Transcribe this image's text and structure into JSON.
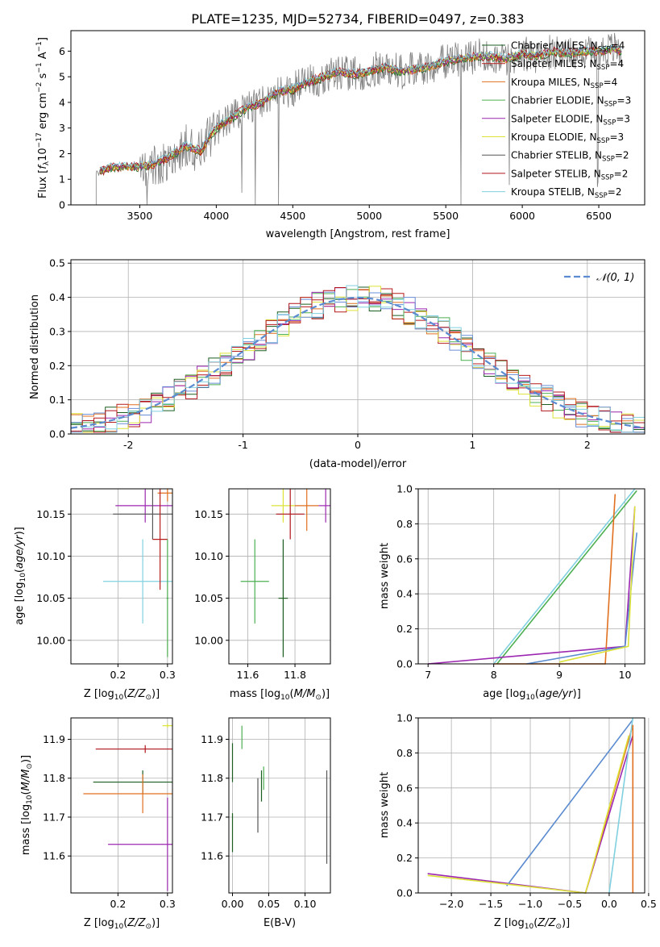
{
  "figure_title": "PLATE=1235, MJD=52734, FIBERID=0497, z=0.383",
  "colors": {
    "Chabrier MILES": "#1b5e20",
    "Salpeter MILES": "#b71c1c",
    "Kroupa MILES": "#e07020",
    "Chabrier ELODIE": "#4caf50",
    "Salpeter ELODIE": "#9c27b0",
    "Kroupa ELODIE": "#dde33a",
    "Chabrier STELIB": "#555555",
    "Salpeter STELIB": "#b0141c",
    "Kroupa STELIB": "#80d0e0",
    "data": "#808080",
    "normal": "#5b8bd0"
  },
  "chart_data": [
    {
      "id": "spectrum",
      "type": "line",
      "title": "PLATE=1235, MJD=52734, FIBERID=0497, z=0.383",
      "xlabel": "wavelength [Angstrom, rest frame]",
      "ylabel": "Flux [f_λ10^-17 erg cm^-2 s^-1 A^-1]",
      "xlim": [
        3050,
        6800
      ],
      "ylim": [
        0,
        6.8
      ],
      "xticks": [
        3500,
        4000,
        4500,
        5000,
        5500,
        6000,
        6500
      ],
      "yticks": [
        0,
        1,
        2,
        3,
        4,
        5,
        6
      ],
      "legend_position": "top-right",
      "series": [
        {
          "name": "Chabrier MILES, N_SSP=4",
          "label_main": "Chabrier MILES, N",
          "label_sub": "SSP",
          "label_tail": "=4"
        },
        {
          "name": "Salpeter MILES, N_SSP=4",
          "label_main": "Salpeter MILES, N",
          "label_sub": "SSP",
          "label_tail": "=4"
        },
        {
          "name": "Kroupa MILES, N_SSP=4",
          "label_main": "Kroupa MILES, N",
          "label_sub": "SSP",
          "label_tail": "=4"
        },
        {
          "name": "Chabrier ELODIE, N_SSP=3",
          "label_main": "Chabrier ELODIE, N",
          "label_sub": "SSP",
          "label_tail": "=3"
        },
        {
          "name": "Salpeter ELODIE, N_SSP=3",
          "label_main": "Salpeter ELODIE, N",
          "label_sub": "SSP",
          "label_tail": "=3"
        },
        {
          "name": "Kroupa ELODIE, N_SSP=3",
          "label_main": "Kroupa ELODIE, N",
          "label_sub": "SSP",
          "label_tail": "=3"
        },
        {
          "name": "Chabrier STELIB, N_SSP=2",
          "label_main": "Chabrier STELIB, N",
          "label_sub": "SSP",
          "label_tail": "=2"
        },
        {
          "name": "Salpeter STELIB, N_SSP=2",
          "label_main": "Salpeter STELIB, N",
          "label_sub": "SSP",
          "label_tail": "=2"
        },
        {
          "name": "Kroupa STELIB, N_SSP=2",
          "label_main": "Kroupa STELIB, N",
          "label_sub": "SSP",
          "label_tail": "=2"
        }
      ],
      "model_curve": {
        "x": [
          3210,
          3240,
          3300,
          3400,
          3500,
          3600,
          3700,
          3800,
          3900,
          3950,
          4000,
          4100,
          4200,
          4300,
          4400,
          4500,
          4600,
          4700,
          4800,
          4900,
          5000,
          5100,
          5200,
          5300,
          5400,
          5500,
          5600,
          5700,
          5800,
          5900,
          6000,
          6100,
          6200,
          6300,
          6400,
          6500,
          6600,
          6650
        ],
        "y": [
          1.2,
          1.3,
          1.45,
          1.5,
          1.5,
          1.6,
          1.9,
          2.3,
          2.1,
          2.6,
          3.0,
          3.4,
          3.8,
          4.0,
          4.4,
          4.5,
          4.8,
          5.0,
          5.2,
          5.1,
          5.2,
          5.4,
          5.2,
          5.3,
          5.4,
          5.6,
          5.7,
          5.8,
          5.8,
          5.7,
          5.9,
          5.8,
          6.0,
          5.9,
          6.0,
          6.0,
          6.1,
          6.0
        ]
      }
    },
    {
      "id": "residuals",
      "type": "step",
      "xlabel": "(data-model)/error",
      "ylabel": "Normed distribution",
      "xlim": [
        -2.5,
        2.5
      ],
      "ylim": [
        0,
        0.51
      ],
      "xticks": [
        -2,
        -1,
        0,
        1,
        2
      ],
      "yticks": [
        0.0,
        0.1,
        0.2,
        0.3,
        0.4,
        0.5
      ],
      "ytick_labels": [
        "0.0",
        "0.1",
        "0.2",
        "0.3",
        "0.4",
        "0.5"
      ],
      "legend": "N(0, 1)",
      "legend_position": "top-right",
      "grid": true
    },
    {
      "id": "age_vs_Z",
      "type": "errorbar",
      "xlabel": "Z [log10(Z/Z☉)]",
      "ylabel": "age [log10(age/yr)]",
      "xlim": [
        0.105,
        0.31
      ],
      "ylim": [
        9.972,
        10.18
      ],
      "xticks": [
        0.2,
        0.3
      ],
      "yticks": [
        10.0,
        10.05,
        10.1,
        10.15
      ],
      "ytick_labels": [
        "10.00",
        "10.05",
        "10.10",
        "10.15"
      ],
      "xtick_labels": [
        "0.2",
        "0.3"
      ],
      "points": [
        {
          "x": 0.3,
          "x_err": 0.02,
          "y": 10.175,
          "y_err": 0.01
        },
        {
          "x": 0.255,
          "x_err": 0.06,
          "y": 10.16,
          "y_err": 0.02
        },
        {
          "x": 0.27,
          "x_err": 0.08,
          "y": 10.15,
          "y_err": 0.03
        },
        {
          "x": 0.25,
          "x_err": 0.08,
          "y": 10.07,
          "y_err": 0.05
        },
        {
          "x": 0.285,
          "x_err": 0.015,
          "y": 10.12,
          "y_err": 0.06
        },
        {
          "x": 0.3,
          "x_err": 0.002,
          "y": 10.05,
          "y_err": 0.07
        }
      ]
    },
    {
      "id": "age_vs_mass",
      "type": "errorbar",
      "xlabel": "mass [log10(M/M☉)]",
      "xlim": [
        11.52,
        11.95
      ],
      "ylim": [
        9.972,
        10.18
      ],
      "xticks": [
        11.6,
        11.8
      ],
      "xtick_labels": [
        "11.6",
        "11.8"
      ],
      "yticks": [
        10.0,
        10.05,
        10.1,
        10.15
      ],
      "ytick_labels": [
        "10.00",
        "10.05",
        "10.10",
        "10.15"
      ],
      "points": [
        {
          "x": 11.63,
          "x_err": 0.06,
          "y": 10.07,
          "y_err": 0.05
        },
        {
          "x": 11.75,
          "x_err": 0.05,
          "y": 10.16,
          "y_err": 0.02
        },
        {
          "x": 11.78,
          "x_err": 0.06,
          "y": 10.15,
          "y_err": 0.03
        },
        {
          "x": 11.75,
          "x_err": 0.02,
          "y": 10.05,
          "y_err": 0.07
        },
        {
          "x": 11.85,
          "x_err": 0.05,
          "y": 10.16,
          "y_err": 0.03
        },
        {
          "x": 11.93,
          "x_err": 0.03,
          "y": 10.16,
          "y_err": 0.02
        }
      ]
    },
    {
      "id": "weight_vs_age",
      "type": "line",
      "xlabel": "age [log10(age/yr)]",
      "ylabel": "mass weight",
      "xlim": [
        6.85,
        10.3
      ],
      "ylim": [
        0,
        1.0
      ],
      "xticks": [
        7,
        8,
        9,
        10
      ],
      "xtick_labels": [
        "7",
        "8",
        "9",
        "10"
      ],
      "yticks": [
        0.0,
        0.2,
        0.4,
        0.6,
        0.8,
        1.0
      ],
      "ytick_labels": [
        "0.0",
        "0.2",
        "0.4",
        "0.6",
        "0.8",
        "1.0"
      ],
      "grid": true
    },
    {
      "id": "mass_vs_Z",
      "type": "errorbar",
      "xlabel": "Z [log10(Z/Z☉)]",
      "ylabel": "mass [log10(M/M☉)]",
      "xlim": [
        0.105,
        0.31
      ],
      "ylim": [
        11.505,
        11.955
      ],
      "xticks": [
        0.2,
        0.3
      ],
      "xtick_labels": [
        "0.2",
        "0.3"
      ],
      "yticks": [
        11.6,
        11.7,
        11.8,
        11.9
      ],
      "ytick_labels": [
        "11.6",
        "11.7",
        "11.8",
        "11.9"
      ],
      "points": [
        {
          "x": 0.3,
          "x_err": 0.01,
          "y": 11.935,
          "y_err": 0.005
        },
        {
          "x": 0.255,
          "x_err": 0.1,
          "y": 11.875,
          "y_err": 0.01
        },
        {
          "x": 0.25,
          "x_err": 0.1,
          "y": 11.79,
          "y_err": 0.03
        },
        {
          "x": 0.25,
          "x_err": 0.12,
          "y": 11.76,
          "y_err": 0.05
        },
        {
          "x": 0.3,
          "x_err": 0.12,
          "y": 11.63,
          "y_err": 0.12
        }
      ]
    },
    {
      "id": "mass_vs_ebv",
      "type": "errorbar",
      "xlabel": "E(B-V)",
      "xlim": [
        -0.005,
        0.135
      ],
      "ylim": [
        11.505,
        11.955
      ],
      "xticks": [
        0.0,
        0.05,
        0.1
      ],
      "xtick_labels": [
        "0.00",
        "0.05",
        "0.10"
      ],
      "yticks": [
        11.6,
        11.7,
        11.8,
        11.9
      ],
      "ytick_labels": [
        "11.6",
        "11.7",
        "11.8",
        "11.9"
      ]
    },
    {
      "id": "weight_vs_Z",
      "type": "line",
      "xlabel": "Z [log10(Z/Z☉)]",
      "ylabel": "mass weight",
      "xlim": [
        -2.42,
        0.45
      ],
      "ylim": [
        0,
        1.0
      ],
      "xticks": [
        -2.0,
        -1.5,
        -1.0,
        -0.5,
        0.0,
        0.5
      ],
      "xtick_labels": [
        "−2.0",
        "−1.5",
        "−1.0",
        "−0.5",
        "0.0",
        "0.5"
      ],
      "yticks": [
        0.0,
        0.2,
        0.4,
        0.6,
        0.8,
        1.0
      ],
      "ytick_labels": [
        "0.0",
        "0.2",
        "0.4",
        "0.6",
        "0.8",
        "1.0"
      ],
      "grid": true
    }
  ]
}
